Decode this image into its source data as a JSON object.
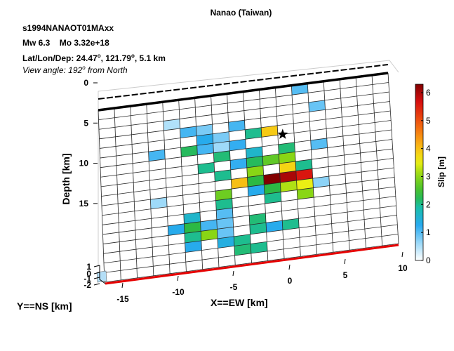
{
  "chart_data": {
    "type": "heatmap",
    "title": "Nanao (Taiwan)",
    "event_id": "s1994NANAOT01MAxx",
    "mw_text": "Mw 6.3",
    "mo_text": "Mo 3.32e+18",
    "location_prefix": "Lat/Lon/Dep: ",
    "lat": "24.47",
    "lon": "121.79",
    "dep": "5.1 km",
    "degree_mark": "o",
    "view_prefix": "View angle: 192",
    "view_suffix": " from North",
    "xlabel": "X==EW [km]",
    "ylabel": "Y==NS [km]",
    "zlabel": "Depth [km]",
    "colorbar_label": "Slip [m]",
    "x_ticks": [
      "-15",
      "-10",
      "-5",
      "0",
      "5",
      "10"
    ],
    "y_ticks": [
      "1",
      "0",
      "-1",
      "-2"
    ],
    "depth_ticks": [
      "0",
      "5",
      "10",
      "15"
    ],
    "cbar_ticks": [
      "0",
      "1",
      "2",
      "3",
      "4",
      "5",
      "6"
    ],
    "cbar_range": [
      0,
      6.3
    ],
    "grid_cols": 18,
    "grid_rows": 18,
    "depth_range_km": [
      0,
      18.5
    ],
    "hypocenter": {
      "row": 5,
      "col": 11.3
    },
    "slip_cells": [
      [
        0,
        12,
        1.0
      ],
      [
        2,
        4,
        0.5
      ],
      [
        2,
        13,
        0.9
      ],
      [
        3,
        5,
        1.1
      ],
      [
        3,
        6,
        0.8
      ],
      [
        3,
        8,
        1.1
      ],
      [
        4,
        6,
        1.3
      ],
      [
        4,
        7,
        0.8
      ],
      [
        4,
        9,
        2.0
      ],
      [
        4,
        10,
        3.9
      ],
      [
        5,
        3,
        1.1
      ],
      [
        5,
        5,
        2.2
      ],
      [
        5,
        6,
        1.1
      ],
      [
        5,
        7,
        0.6
      ],
      [
        5,
        8,
        1.2
      ],
      [
        6,
        7,
        2.1
      ],
      [
        6,
        9,
        1.6
      ],
      [
        6,
        11,
        2.1
      ],
      [
        6,
        13,
        1.0
      ],
      [
        7,
        6,
        2.0
      ],
      [
        7,
        8,
        1.2
      ],
      [
        7,
        9,
        2.2
      ],
      [
        7,
        10,
        2.7
      ],
      [
        7,
        11,
        3.0
      ],
      [
        8,
        7,
        2.0
      ],
      [
        8,
        9,
        3.0
      ],
      [
        8,
        11,
        3.8
      ],
      [
        8,
        12,
        2.0
      ],
      [
        9,
        8,
        4.0
      ],
      [
        9,
        9,
        2.3
      ],
      [
        9,
        10,
        6.3
      ],
      [
        9,
        11,
        6.0
      ],
      [
        9,
        12,
        5.6
      ],
      [
        10,
        3,
        0.6
      ],
      [
        10,
        7,
        2.8
      ],
      [
        10,
        9,
        1.3
      ],
      [
        10,
        10,
        2.3
      ],
      [
        10,
        11,
        3.2
      ],
      [
        10,
        12,
        3.5
      ],
      [
        10,
        13,
        0.7
      ],
      [
        11,
        7,
        2.0
      ],
      [
        11,
        10,
        2.0
      ],
      [
        11,
        12,
        3.0
      ],
      [
        12,
        5,
        1.6
      ],
      [
        12,
        7,
        1.0
      ],
      [
        13,
        4,
        1.3
      ],
      [
        13,
        5,
        2.3
      ],
      [
        13,
        6,
        1.1
      ],
      [
        13,
        7,
        0.9
      ],
      [
        13,
        9,
        2.1
      ],
      [
        14,
        5,
        2.0
      ],
      [
        14,
        6,
        3.0
      ],
      [
        14,
        7,
        0.9
      ],
      [
        14,
        9,
        2.0
      ],
      [
        14,
        10,
        1.3
      ],
      [
        14,
        11,
        2.0
      ],
      [
        15,
        5,
        1.3
      ],
      [
        15,
        7,
        1.4
      ],
      [
        15,
        8,
        2.0
      ],
      [
        16,
        8,
        2.1
      ],
      [
        16,
        9,
        2.0
      ]
    ]
  },
  "colors": {
    "grid_line": "#262626",
    "cell_empty": "#ffffff",
    "top_edge": "#000000",
    "surface_trace": "#e60000"
  }
}
